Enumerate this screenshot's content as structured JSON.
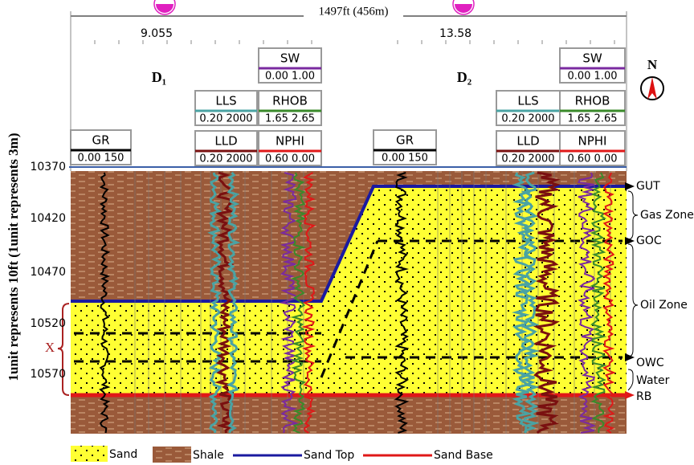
{
  "top_scale": {
    "label": "1497ft (456m)"
  },
  "wells": [
    {
      "name": "D₁",
      "position": "9.055",
      "tracks": [
        {
          "name": "GR",
          "range": "0.00 150"
        },
        {
          "name": "LLS",
          "range": "0.20 2000"
        },
        {
          "name": "LLD",
          "range": "0.20 2000"
        },
        {
          "name": "SW",
          "range": "0.00 1.00"
        },
        {
          "name": "RHOB",
          "range": "1.65 2.65"
        },
        {
          "name": "NPHI",
          "range": "0.60 0.00"
        }
      ]
    },
    {
      "name": "D₂",
      "position": "13.58",
      "tracks": [
        {
          "name": "GR",
          "range": "0.00 150"
        },
        {
          "name": "LLS",
          "range": "0.20 2000"
        },
        {
          "name": "LLD",
          "range": "0.20 2000"
        },
        {
          "name": "SW",
          "range": "0.00 1.00"
        },
        {
          "name": "RHOB",
          "range": "1.65 2.65"
        },
        {
          "name": "NPHI",
          "range": "0.60 0.00"
        }
      ]
    }
  ],
  "depths": [
    "10370",
    "10420",
    "10470",
    "10520",
    "10570"
  ],
  "depth_axis_label": "1unit represents 10ft (1unit represents 3m)",
  "interval_marker": "X",
  "markers": [
    "GUT",
    "Gas Zone",
    "GOC",
    "Oil Zone",
    "OWC",
    "Water",
    "RB"
  ],
  "compass": "N",
  "legend": [
    "Sand",
    "Shale",
    "Sand Top",
    "Sand Base"
  ]
}
